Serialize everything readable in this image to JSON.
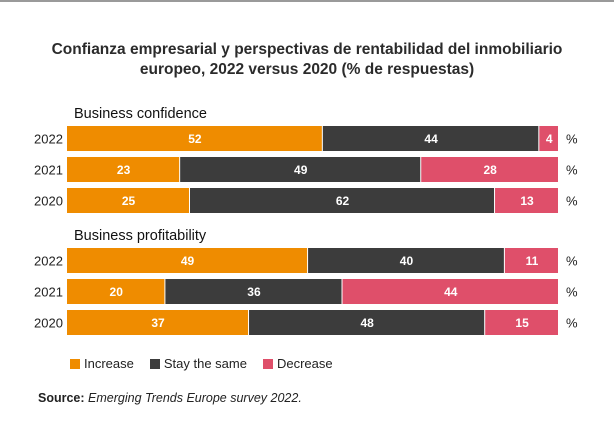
{
  "title": "Confianza empresarial y perspectivas de rentabilidad del inmobiliario europeo, 2022 versus 2020 (% de respuestas)",
  "source_label": "Source:",
  "source_text": "Emerging Trends Europe survey 2022.",
  "colors": {
    "increase": "#ef8c00",
    "stay": "#3c3c3c",
    "decrease": "#df4f6a"
  },
  "chart_data": {
    "type": "bar",
    "orientation": "horizontal",
    "stacked": true,
    "unit": "%",
    "xlim": [
      0,
      100
    ],
    "legend_position": "bottom-left",
    "series_names": [
      "Increase",
      "Stay the same",
      "Decrease"
    ],
    "groups": [
      {
        "name": "Business confidence",
        "rows": [
          {
            "year": "2022",
            "values": [
              52,
              44,
              4
            ]
          },
          {
            "year": "2021",
            "values": [
              23,
              49,
              28
            ]
          },
          {
            "year": "2020",
            "values": [
              25,
              62,
              13
            ]
          }
        ]
      },
      {
        "name": "Business profitability",
        "rows": [
          {
            "year": "2022",
            "values": [
              49,
              40,
              11
            ]
          },
          {
            "year": "2021",
            "values": [
              20,
              36,
              44
            ]
          },
          {
            "year": "2020",
            "values": [
              37,
              48,
              15
            ]
          }
        ]
      }
    ]
  }
}
